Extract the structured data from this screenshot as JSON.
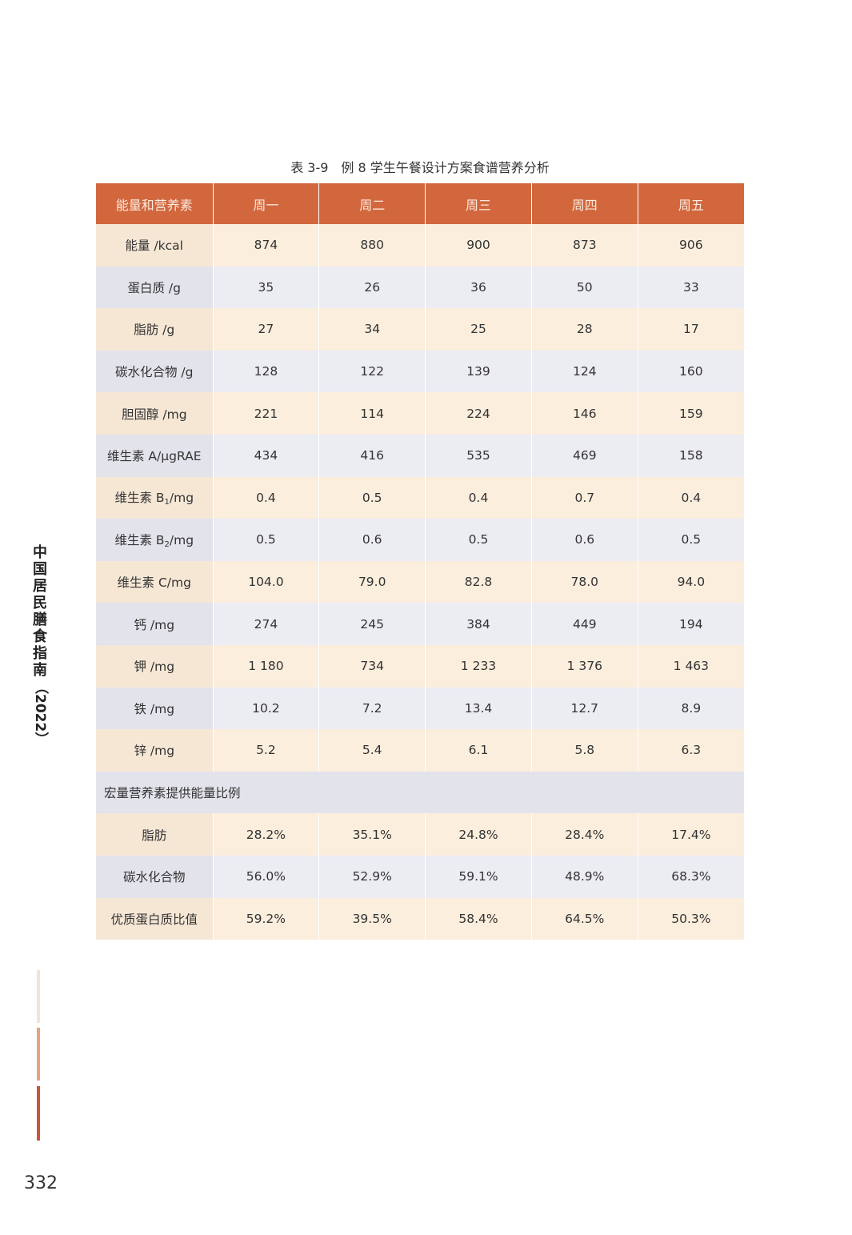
{
  "table_title": "表 3-9　例 8 学生午餐设计方案食谱营养分析",
  "headers": [
    "能量和营养素",
    "周一",
    "周二",
    "周三",
    "周四",
    "周五"
  ],
  "rows": [
    {
      "label": "能量 /kcal",
      "values": [
        "874",
        "880",
        "900",
        "873",
        "906"
      ]
    },
    {
      "label": "蛋白质 /g",
      "values": [
        "35",
        "26",
        "36",
        "50",
        "33"
      ]
    },
    {
      "label": "脂肪 /g",
      "values": [
        "27",
        "34",
        "25",
        "28",
        "17"
      ]
    },
    {
      "label": "碳水化合物 /g",
      "values": [
        "128",
        "122",
        "139",
        "124",
        "160"
      ]
    },
    {
      "label": "胆固醇 /mg",
      "values": [
        "221",
        "114",
        "224",
        "146",
        "159"
      ]
    },
    {
      "label": "维生素 A/μgRAE",
      "values": [
        "434",
        "416",
        "535",
        "469",
        "158"
      ]
    },
    {
      "label_prefix": "维生素 B",
      "label_sub": "1",
      "label_suffix": "/mg",
      "values": [
        "0.4",
        "0.5",
        "0.4",
        "0.7",
        "0.4"
      ]
    },
    {
      "label_prefix": "维生素 B",
      "label_sub": "2",
      "label_suffix": "/mg",
      "values": [
        "0.5",
        "0.6",
        "0.5",
        "0.6",
        "0.5"
      ]
    },
    {
      "label": "维生素 C/mg",
      "values": [
        "104.0",
        "79.0",
        "82.8",
        "78.0",
        "94.0"
      ]
    },
    {
      "label": "钙 /mg",
      "values": [
        "274",
        "245",
        "384",
        "449",
        "194"
      ]
    },
    {
      "label": "钾 /mg",
      "values": [
        "1 180",
        "734",
        "1 233",
        "1 376",
        "1 463"
      ]
    },
    {
      "label": "铁 /mg",
      "values": [
        "10.2",
        "7.2",
        "13.4",
        "12.7",
        "8.9"
      ]
    },
    {
      "label": "锌 /mg",
      "values": [
        "5.2",
        "5.4",
        "6.1",
        "5.8",
        "6.3"
      ]
    }
  ],
  "macro_section_title": "宏量营养素提供能量比例",
  "macro_rows": [
    {
      "label": "脂肪",
      "values": [
        "28.2%",
        "35.1%",
        "24.8%",
        "28.4%",
        "17.4%"
      ]
    },
    {
      "label": "碳水化合物",
      "values": [
        "56.0%",
        "52.9%",
        "59.1%",
        "48.9%",
        "68.3%"
      ]
    },
    {
      "label": "优质蛋白质比值",
      "values": [
        "59.2%",
        "39.5%",
        "58.4%",
        "64.5%",
        "50.3%"
      ]
    }
  ],
  "side_title_chars": [
    "中",
    "国",
    "居",
    "民",
    "膳",
    "食",
    "指",
    "南"
  ],
  "side_title_year": "（2022）",
  "page_number": "332"
}
